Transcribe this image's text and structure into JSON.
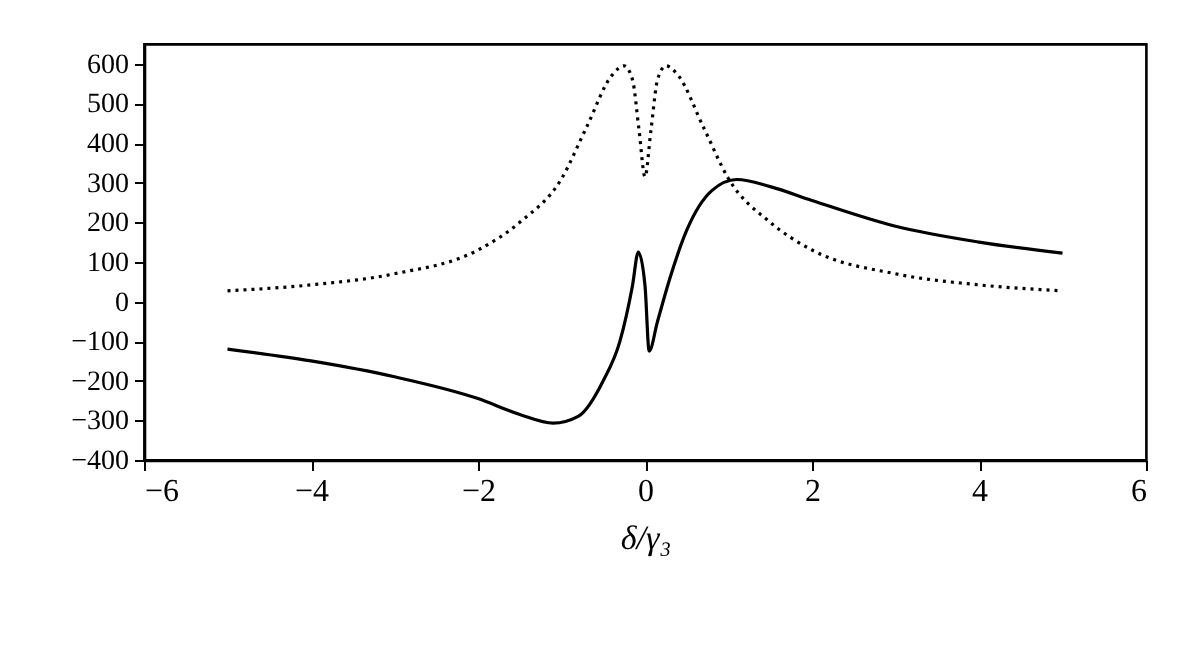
{
  "chart_data": {
    "type": "line",
    "xlabel": "δ/γ₃",
    "xlim": [
      -6,
      6
    ],
    "xticks": [
      -6,
      -4,
      -2,
      0,
      2,
      4,
      6
    ],
    "ylim": [
      -400,
      650
    ],
    "yticks": [
      -400,
      -300,
      -200,
      -100,
      0,
      100,
      200,
      300,
      400,
      500,
      600
    ],
    "grid": false,
    "series": [
      {
        "color": "#000000",
        "line_style": "solid",
        "x": [
          -5,
          -4,
          -3,
          -2,
          -1.5,
          -1.1,
          -0.8,
          -0.5,
          -0.3,
          -0.15,
          -0.08,
          0,
          0.05,
          0.15,
          0.3,
          0.5,
          0.8,
          1.1,
          1.5,
          2,
          3,
          4,
          5
        ],
        "values": [
          -120,
          -150,
          -190,
          -245,
          -285,
          -307,
          -290,
          -200,
          -100,
          40,
          125,
          40,
          -125,
          -50,
          60,
          180,
          280,
          308,
          290,
          255,
          190,
          150,
          122
        ]
      },
      {
        "color": "#000000",
        "line_style": "dotted",
        "x": [
          -5,
          -4,
          -3,
          -2,
          -1.5,
          -1,
          -0.7,
          -0.4,
          -0.25,
          -0.15,
          -0.07,
          0,
          0.07,
          0.15,
          0.25,
          0.4,
          0.7,
          1,
          1.5,
          2,
          3,
          4,
          5
        ],
        "values": [
          27,
          42,
          70,
          130,
          200,
          310,
          440,
          570,
          595,
          560,
          430,
          315,
          430,
          560,
          595,
          570,
          440,
          310,
          200,
          130,
          70,
          42,
          27
        ]
      }
    ]
  }
}
